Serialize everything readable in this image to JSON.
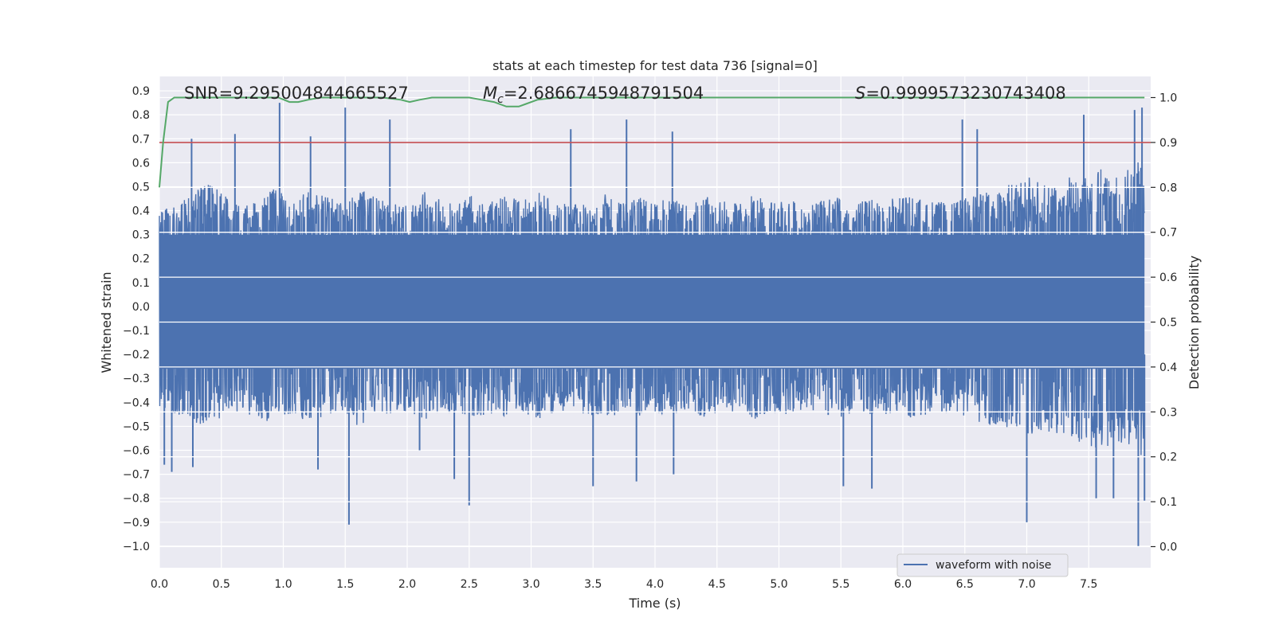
{
  "chart_data": {
    "type": "line",
    "title": "stats at each timestep for test data 736 [signal=0]",
    "xlabel": "Time (s)",
    "ylabel": "Whitened strain",
    "y2label": "Detection probability",
    "xlim": [
      0,
      8
    ],
    "ylim": [
      -1.09,
      0.96
    ],
    "y2lim": [
      -0.047,
      1.047
    ],
    "x_ticks": [
      "0.0",
      "0.5",
      "1.0",
      "1.5",
      "2.0",
      "2.5",
      "3.0",
      "3.5",
      "4.0",
      "4.5",
      "5.0",
      "5.5",
      "6.0",
      "6.5",
      "7.0",
      "7.5"
    ],
    "y_ticks": [
      "0.9",
      "0.8",
      "0.7",
      "0.6",
      "0.5",
      "0.4",
      "0.3",
      "0.2",
      "0.1",
      "0.0",
      "−0.1",
      "−0.2",
      "−0.3",
      "−0.4",
      "−0.5",
      "−0.6",
      "−0.7",
      "−0.8",
      "−0.9",
      "−1.0"
    ],
    "y2_ticks": [
      "1.0",
      "0.9",
      "0.8",
      "0.7",
      "0.6",
      "0.5",
      "0.4",
      "0.3",
      "0.2",
      "0.1",
      "0.0"
    ],
    "annotations": {
      "snr": "SNR=9.295004844665527",
      "mc_prefix": "M",
      "mc_sub": "c",
      "mc_value": "=2.6866745948791504",
      "s_prefix": "S",
      "s_value": "=0.9999573230743408"
    },
    "threshold": 0.9,
    "series": [
      {
        "name": "waveform with noise",
        "axis": "left",
        "color": "#4c72b0",
        "envelope_upper": [
          0.4,
          0.42,
          0.48,
          0.52,
          0.46,
          0.42,
          0.45,
          0.5,
          0.44,
          0.48,
          0.47,
          0.43,
          0.5,
          0.46,
          0.44,
          0.42,
          0.48,
          0.45,
          0.43,
          0.47,
          0.44,
          0.46,
          0.45,
          0.48,
          0.44,
          0.42,
          0.45,
          0.47,
          0.43,
          0.46,
          0.44,
          0.45,
          0.42,
          0.46,
          0.44,
          0.43,
          0.47,
          0.44,
          0.45,
          0.42,
          0.44,
          0.46,
          0.43,
          0.45,
          0.44,
          0.47,
          0.45,
          0.44,
          0.43,
          0.46,
          0.48,
          0.5,
          0.52,
          0.55,
          0.5,
          0.54,
          0.56,
          0.58,
          0.54,
          0.6,
          0.62
        ],
        "envelope_lower": [
          -0.42,
          -0.45,
          -0.48,
          -0.5,
          -0.46,
          -0.44,
          -0.47,
          -0.49,
          -0.45,
          -0.48,
          -0.46,
          -0.44,
          -0.5,
          -0.47,
          -0.45,
          -0.44,
          -0.48,
          -0.46,
          -0.44,
          -0.47,
          -0.45,
          -0.46,
          -0.45,
          -0.48,
          -0.44,
          -0.43,
          -0.46,
          -0.47,
          -0.44,
          -0.46,
          -0.45,
          -0.45,
          -0.43,
          -0.47,
          -0.44,
          -0.44,
          -0.47,
          -0.45,
          -0.45,
          -0.43,
          -0.44,
          -0.47,
          -0.44,
          -0.45,
          -0.45,
          -0.47,
          -0.46,
          -0.45,
          -0.44,
          -0.47,
          -0.49,
          -0.52,
          -0.54,
          -0.56,
          -0.52,
          -0.55,
          -0.58,
          -0.6,
          -0.56,
          -0.62,
          -0.64
        ],
        "peaks": [
          {
            "x": 0.04,
            "y": -0.66
          },
          {
            "x": 0.1,
            "y": -0.69
          },
          {
            "x": 0.26,
            "y": 0.7
          },
          {
            "x": 0.27,
            "y": -0.67
          },
          {
            "x": 0.61,
            "y": 0.72
          },
          {
            "x": 0.97,
            "y": 0.85
          },
          {
            "x": 1.22,
            "y": 0.71
          },
          {
            "x": 1.28,
            "y": -0.68
          },
          {
            "x": 1.5,
            "y": 0.83
          },
          {
            "x": 1.53,
            "y": -0.91
          },
          {
            "x": 1.86,
            "y": 0.78
          },
          {
            "x": 2.1,
            "y": -0.6
          },
          {
            "x": 2.38,
            "y": -0.72
          },
          {
            "x": 2.5,
            "y": -0.83
          },
          {
            "x": 3.32,
            "y": 0.74
          },
          {
            "x": 3.5,
            "y": -0.75
          },
          {
            "x": 3.77,
            "y": 0.78
          },
          {
            "x": 3.85,
            "y": -0.73
          },
          {
            "x": 4.14,
            "y": 0.73
          },
          {
            "x": 4.15,
            "y": -0.7
          },
          {
            "x": 5.52,
            "y": -0.75
          },
          {
            "x": 5.75,
            "y": -0.76
          },
          {
            "x": 6.48,
            "y": 0.78
          },
          {
            "x": 6.6,
            "y": 0.74
          },
          {
            "x": 7.0,
            "y": -0.9
          },
          {
            "x": 7.46,
            "y": 0.8
          },
          {
            "x": 7.56,
            "y": -0.8
          },
          {
            "x": 7.7,
            "y": -0.8
          },
          {
            "x": 7.87,
            "y": 0.82
          },
          {
            "x": 7.9,
            "y": -1.0
          },
          {
            "x": 7.93,
            "y": 0.83
          },
          {
            "x": 7.95,
            "y": -0.81
          }
        ]
      },
      {
        "name": "detection probability",
        "axis": "right",
        "color": "#55a868",
        "x": [
          0.0,
          0.03,
          0.07,
          0.12,
          0.2,
          0.4,
          0.6,
          0.8,
          0.96,
          1.05,
          1.12,
          1.2,
          1.3,
          1.5,
          1.8,
          1.95,
          2.02,
          2.1,
          2.2,
          2.5,
          2.6,
          2.7,
          2.8,
          2.9,
          2.95,
          3.05,
          3.2,
          3.5,
          4.0,
          5.0,
          6.0,
          7.0,
          7.95
        ],
        "y": [
          0.8,
          0.9,
          0.99,
          1.0,
          1.0,
          1.0,
          1.0,
          1.0,
          1.0,
          0.99,
          0.99,
          0.995,
          1.0,
          1.0,
          1.0,
          0.995,
          0.99,
          0.995,
          1.0,
          1.0,
          0.995,
          0.99,
          0.98,
          0.98,
          0.985,
          0.995,
          1.0,
          1.0,
          1.0,
          1.0,
          1.0,
          1.0,
          1.0
        ]
      }
    ],
    "legend": {
      "position": "lower-right",
      "entries": [
        "waveform with noise"
      ]
    },
    "grid": true
  }
}
